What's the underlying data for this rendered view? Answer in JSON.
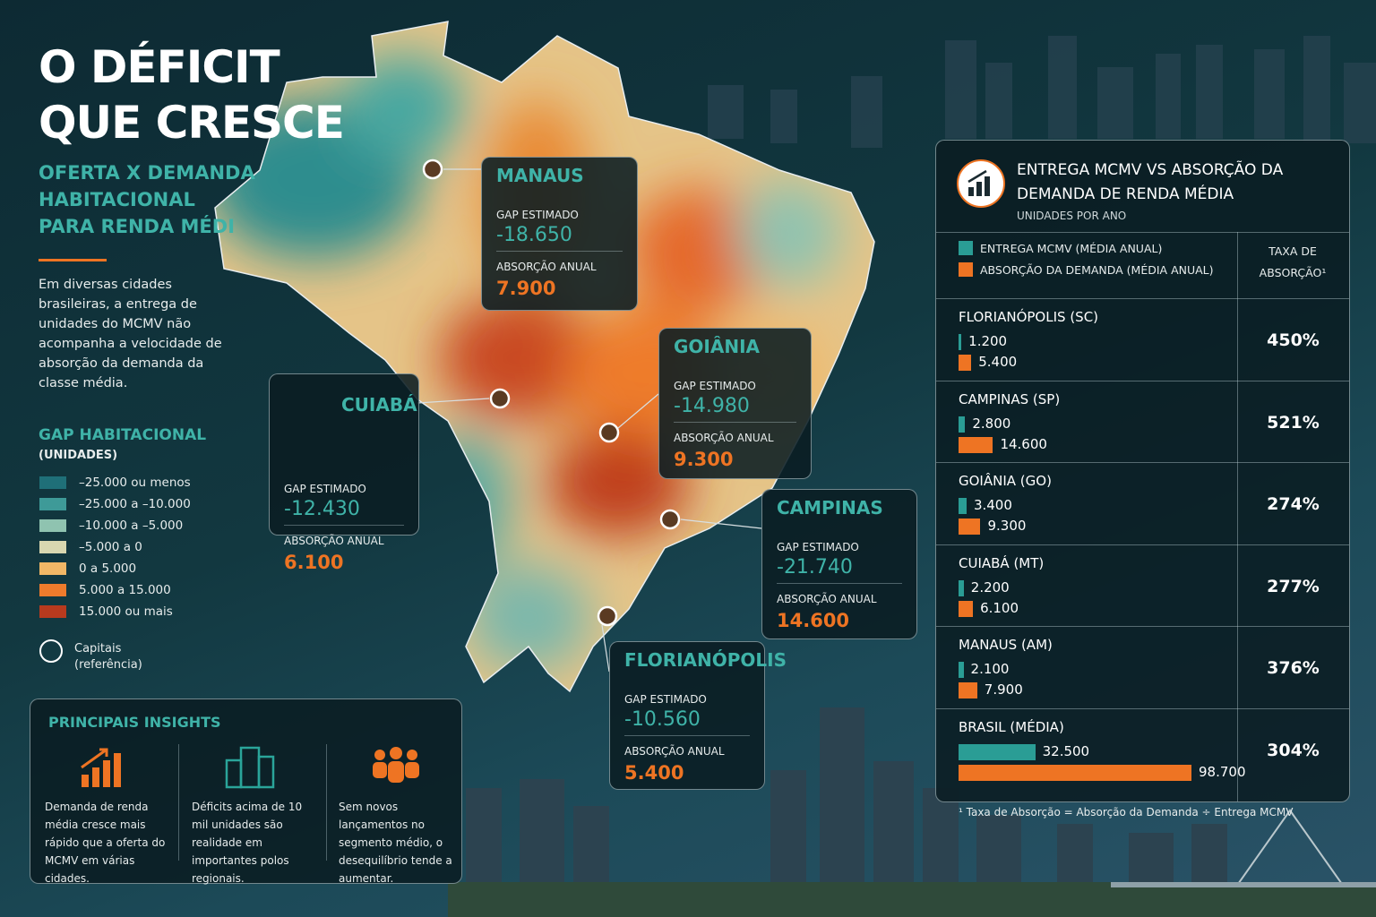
{
  "header": {
    "title_lines": [
      "O DÉFICIT",
      "QUE CRESCE"
    ],
    "subtitle_lines": [
      "OFERTA X DEMANDA",
      "HABITACIONAL",
      "PARA RENDA MÉDI"
    ],
    "intro": "Em diversas cidades brasileiras, a entrega de unidades do MCMV não acompanha a velocidade de absorção da demanda da classe média."
  },
  "legend": {
    "title": "GAP HABITACIONAL",
    "unit": "(UNIDADES)",
    "items": [
      {
        "label": "–25.000 ou menos",
        "color": "#1f6f78"
      },
      {
        "label": "–25.000 a –10.000",
        "color": "#3e9a98"
      },
      {
        "label": "–10.000 a –5.000",
        "color": "#8fc3b0"
      },
      {
        "label": "–5.000 a 0",
        "color": "#d9d7b0"
      },
      {
        "label": "0 a 5.000",
        "color": "#f2b766"
      },
      {
        "label": "5.000 a 15.000",
        "color": "#ee7b2c"
      },
      {
        "label": "15.000 ou mais",
        "color": "#b83a1e"
      }
    ],
    "capitals_lines": [
      "Capitais",
      "(referência)"
    ]
  },
  "callouts": [
    {
      "city": "MANAUS",
      "gap_label": "GAP ESTIMADO",
      "gap": "-18.650",
      "absorption_label": "ABSORÇÃO ANUAL",
      "absorption": "7.900"
    },
    {
      "city": "GOIÂNIA",
      "gap_label": "GAP ESTIMADO",
      "gap": "-14.980",
      "absorption_label": "ABSORÇÃO ANUAL",
      "absorption": "9.300"
    },
    {
      "city": "CUIABÁ",
      "gap_label": "GAP ESTIMADO",
      "gap": "-12.430",
      "absorption_label": "ABSORÇÃO ANUAL",
      "absorption": "6.100"
    },
    {
      "city": "CAMPINAS",
      "gap_label": "GAP ESTIMADO",
      "gap": "-21.740",
      "absorption_label": "ABSORÇÃO ANUAL",
      "absorption": "14.600"
    },
    {
      "city": "FLORIANÓPOLIS",
      "gap_label": "GAP ESTIMADO",
      "gap": "-10.560",
      "absorption_label": "ABSORÇÃO ANUAL",
      "absorption": "5.400"
    }
  ],
  "insights": {
    "title": "PRINCIPAIS INSIGHTS",
    "items": [
      "Demanda de renda média cresce mais rápido que a oferta do MCMV em várias cidades.",
      "Déficits acima de 10 mil unidades são realidade em importantes polos regionais.",
      "Sem novos lançamentos no segmento médio, o desequilíbrio tende a aumentar."
    ]
  },
  "chart_data": {
    "type": "bar",
    "orientation": "horizontal",
    "title": "ENTREGA MCMV VS ABSORÇÃO DA DEMANDA DE RENDA MÉDIA",
    "subtitle": "UNIDADES POR ANO",
    "categories": [
      "FLORIANÓPOLIS (SC)",
      "CAMPINAS (SP)",
      "GOIÂNIA (GO)",
      "CUIABÁ (MT)",
      "MANAUS (AM)",
      "BRASIL (MÉDIA)"
    ],
    "series": [
      {
        "name": "ENTREGA MCMV (MÉDIA ANUAL)",
        "color": "#2a9d95",
        "values": [
          1200,
          2800,
          3400,
          2200,
          2100,
          32500
        ],
        "value_labels": [
          "1.200",
          "2.800",
          "3.400",
          "2.200",
          "2.100",
          "32.500"
        ]
      },
      {
        "name": "ABSORÇÃO DA DEMANDA (MÉDIA ANUAL)",
        "color": "#ee7423",
        "values": [
          5400,
          14600,
          9300,
          6100,
          7900,
          98700
        ],
        "value_labels": [
          "5.400",
          "14.600",
          "9.300",
          "6.100",
          "7.900",
          "98.700"
        ]
      }
    ],
    "rate_header": "TAXA DE ABSORÇÃO¹",
    "rates": [
      "450%",
      "521%",
      "274%",
      "277%",
      "376%",
      "304%"
    ],
    "footnote": "¹ Taxa de Absorção = Absorção da Demanda ÷ Entrega MCMV"
  }
}
